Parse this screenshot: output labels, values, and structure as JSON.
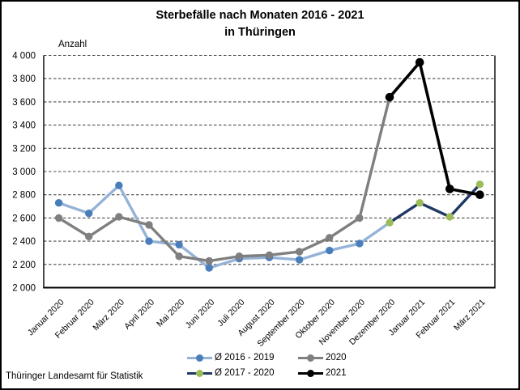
{
  "title": {
    "line1": "Sterbefälle nach Monaten 2016 - 2021",
    "line2": "in Thüringen"
  },
  "footer": "Thüringer Landesamt für Statistik",
  "chart_data": {
    "type": "line",
    "title": "Sterbefälle nach Monaten 2016 - 2021 in Thüringen",
    "xlabel": "",
    "ylabel": "Anzahl",
    "ylim": [
      2000,
      4000
    ],
    "grid": "horizontal-dashed",
    "legend_position": "bottom",
    "y_ticks": [
      {
        "value": 2000,
        "label": "2 000"
      },
      {
        "value": 2200,
        "label": "2 200"
      },
      {
        "value": 2400,
        "label": "2 400"
      },
      {
        "value": 2600,
        "label": "2 600"
      },
      {
        "value": 2800,
        "label": "2 800"
      },
      {
        "value": 3000,
        "label": "3 000"
      },
      {
        "value": 3200,
        "label": "3 200"
      },
      {
        "value": 3400,
        "label": "3 400"
      },
      {
        "value": 3600,
        "label": "3 600"
      },
      {
        "value": 3800,
        "label": "3 800"
      },
      {
        "value": 4000,
        "label": "4 000"
      }
    ],
    "categories": [
      "Januar 2020",
      "Februar 2020",
      "März 2020",
      "April 2020",
      "Mai 2020",
      "Juni 2020",
      "Juli 2020",
      "August 2020",
      "September 2020",
      "Oktober 2020",
      "November 2020",
      "Dezember 2020",
      "Januar 2021",
      "Februar 2021",
      "März 2021"
    ],
    "series": [
      {
        "name": "Ø 2016 - 2019",
        "line_color": "#95b3d7",
        "marker_color": "#4a7ebb",
        "start_index": 0,
        "values": [
          2730,
          2640,
          2880,
          2400,
          2370,
          2170,
          2250,
          2260,
          2240,
          2320,
          2380,
          2560
        ],
        "marker_on_last_point": false
      },
      {
        "name": "2020",
        "line_color": "#7f7f7f",
        "marker_color": "#7f7f7f",
        "start_index": 0,
        "values": [
          2600,
          2440,
          2610,
          2540,
          2270,
          2230,
          2270,
          2280,
          2310,
          2430,
          2600,
          3640
        ],
        "marker_on_last_point": false
      },
      {
        "name": "Ø 2017 - 2020",
        "line_color": "#1f3864",
        "marker_color": "#9bbb59",
        "start_index": 11,
        "values": [
          2560,
          2730,
          2610,
          2890
        ],
        "marker_on_last_point": true
      },
      {
        "name": "2021",
        "line_color": "#000000",
        "marker_color": "#000000",
        "start_index": 11,
        "values": [
          3640,
          3940,
          2850,
          2800
        ],
        "marker_on_last_point": true
      }
    ]
  }
}
